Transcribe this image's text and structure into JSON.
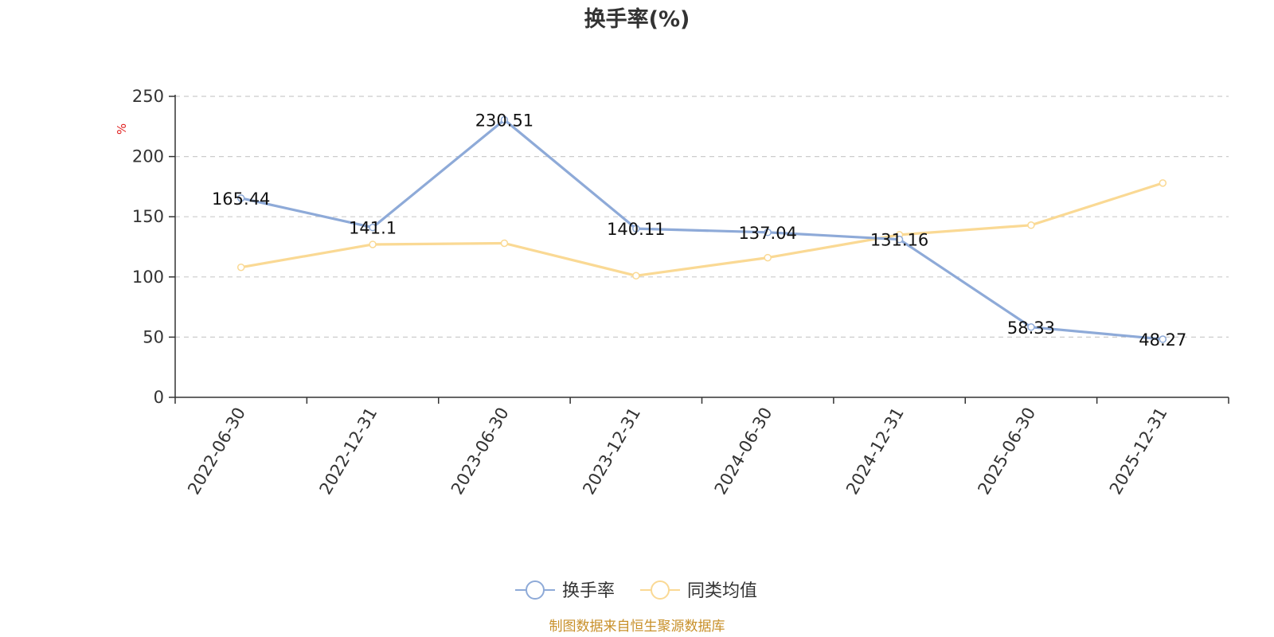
{
  "chart_data": {
    "type": "line",
    "title": "换手率(%)",
    "ylabel": "%",
    "xlabel": "",
    "ylim": [
      0,
      250
    ],
    "yticks": [
      0,
      50,
      100,
      150,
      200,
      250
    ],
    "grid": true,
    "legend_position": "bottom",
    "categories": [
      "2022-06-30",
      "2022-12-31",
      "2023-06-30",
      "2023-12-31",
      "2024-06-30",
      "2024-12-31",
      "2025-06-30",
      "2025-12-31"
    ],
    "series": [
      {
        "name": "换手率",
        "color": "#8eaad8",
        "values": [
          165.44,
          141.1,
          230.51,
          140.11,
          137.04,
          131.16,
          58.33,
          48.27
        ],
        "labels": [
          "165.44",
          "141.1",
          "230.51",
          "140.11",
          "137.04",
          "131.16",
          "58.33",
          "48.27"
        ],
        "show_labels": true
      },
      {
        "name": "同类均值",
        "color": "#fad994",
        "values": [
          108,
          127,
          128,
          101,
          116,
          135,
          143,
          178
        ],
        "show_labels": false
      }
    ]
  },
  "source_text": "制图数据来自恒生聚源数据库"
}
